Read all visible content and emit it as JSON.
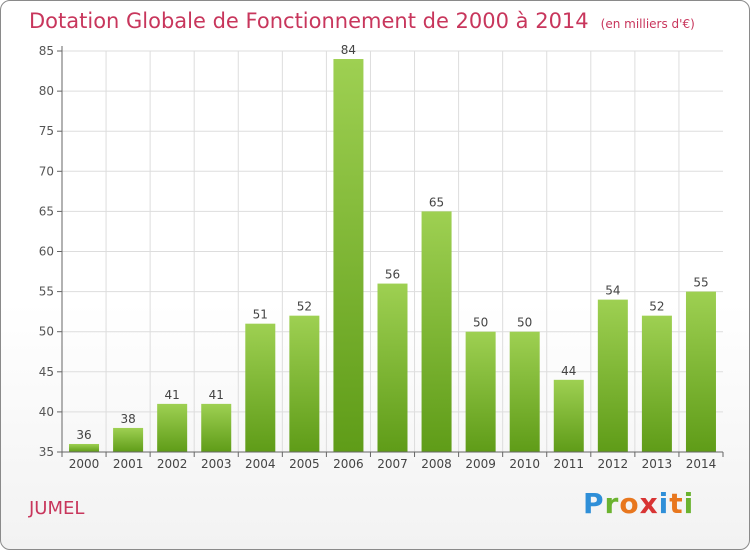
{
  "header": {
    "title": "Dotation Globale de Fonctionnement de 2000 à 2014",
    "unit": "(en milliers d'€)"
  },
  "footer": {
    "commune": "JUMEL",
    "logo_letters": [
      "P",
      "r",
      "o",
      "x",
      "i",
      "t",
      "i"
    ]
  },
  "colors": {
    "title": "#c8365c",
    "bar_top": "#9ed052",
    "bar_bottom": "#5f9c18",
    "axis": "#666666",
    "grid": "#dddddd"
  },
  "chart_data": {
    "type": "bar",
    "title": "Dotation Globale de Fonctionnement de 2000 à 2014",
    "subtitle": "(en milliers d'€)",
    "xlabel": "",
    "ylabel": "",
    "categories": [
      "2000",
      "2001",
      "2002",
      "2003",
      "2004",
      "2005",
      "2006",
      "2007",
      "2008",
      "2009",
      "2010",
      "2011",
      "2012",
      "2013",
      "2014"
    ],
    "values": [
      36,
      38,
      41,
      41,
      51,
      52,
      84,
      56,
      65,
      50,
      50,
      44,
      54,
      52,
      55
    ],
    "ylim": [
      35,
      85
    ],
    "yticks": [
      35,
      40,
      45,
      50,
      55,
      60,
      65,
      70,
      75,
      80,
      85
    ],
    "grid": true,
    "data_labels": true
  }
}
